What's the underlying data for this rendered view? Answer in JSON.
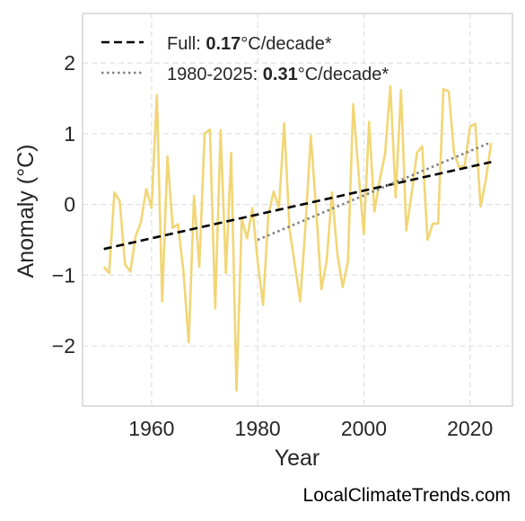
{
  "chart_data": {
    "type": "line",
    "xlabel": "Year",
    "ylabel": "Anomaly (°C)",
    "xlim": [
      1947,
      2028
    ],
    "ylim": [
      -2.85,
      2.7
    ],
    "x_ticks": [
      1960,
      1980,
      2000,
      2020
    ],
    "x_tick_labels": [
      "1960",
      "1980",
      "2000",
      "2020"
    ],
    "y_ticks": [
      -2,
      -1,
      0,
      1,
      2
    ],
    "y_tick_labels": [
      "−2",
      "−1",
      "0",
      "1",
      "2"
    ],
    "grid": true,
    "legend_placement": "top-left",
    "series": [
      {
        "color": "#f2d675",
        "x": [
          1951,
          1952,
          1953,
          1954,
          1955,
          1956,
          1957,
          1958,
          1959,
          1960,
          1961,
          1962,
          1963,
          1964,
          1965,
          1966,
          1967,
          1968,
          1969,
          1970,
          1971,
          1972,
          1973,
          1974,
          1975,
          1976,
          1977,
          1978,
          1979,
          1980,
          1981,
          1982,
          1983,
          1984,
          1985,
          1986,
          1987,
          1988,
          1989,
          1990,
          1991,
          1992,
          1993,
          1994,
          1995,
          1996,
          1997,
          1998,
          1999,
          2000,
          2001,
          2002,
          2003,
          2004,
          2005,
          2006,
          2007,
          2008,
          2009,
          2010,
          2011,
          2012,
          2013,
          2014,
          2015,
          2016,
          2017,
          2018,
          2019,
          2020,
          2021,
          2022,
          2023,
          2024
        ],
        "y": [
          -0.88,
          -0.97,
          0.17,
          0.05,
          -0.85,
          -0.95,
          -0.45,
          -0.25,
          0.22,
          -0.05,
          1.55,
          -1.37,
          0.68,
          -0.33,
          -0.28,
          -0.95,
          -1.95,
          0.12,
          -0.88,
          1.0,
          1.06,
          -1.47,
          1.05,
          -0.97,
          0.73,
          -2.63,
          -0.2,
          -0.48,
          -0.05,
          -0.8,
          -1.42,
          -0.15,
          0.18,
          -0.05,
          1.15,
          -0.35,
          -0.85,
          -1.37,
          -0.3,
          0.97,
          -0.05,
          -1.2,
          -0.8,
          0.17,
          -0.7,
          -1.17,
          -0.8,
          1.42,
          0.45,
          -0.42,
          1.17,
          -0.1,
          0.35,
          0.72,
          1.67,
          0.1,
          1.62,
          -0.37,
          0.15,
          0.73,
          0.82,
          -0.5,
          -0.27,
          -0.27,
          1.63,
          1.6,
          0.72,
          0.52,
          0.55,
          1.1,
          1.14,
          -0.03,
          0.35,
          0.87
        ]
      },
      {
        "name": "Full: ",
        "name_value": "0.17",
        "name_suffix": "°C/decade*",
        "color": "#000000",
        "dash": "dashed",
        "x": [
          1951,
          2024
        ],
        "y": [
          -0.63,
          0.6
        ]
      },
      {
        "name": "1980-2025: ",
        "name_value": "0.31",
        "name_suffix": "°C/decade*",
        "color": "#808080",
        "dash": "dotted",
        "x": [
          1980,
          2024
        ],
        "y": [
          -0.5,
          0.88
        ]
      }
    ]
  },
  "footer": {
    "watermark": "LocalClimateTrends.com"
  }
}
